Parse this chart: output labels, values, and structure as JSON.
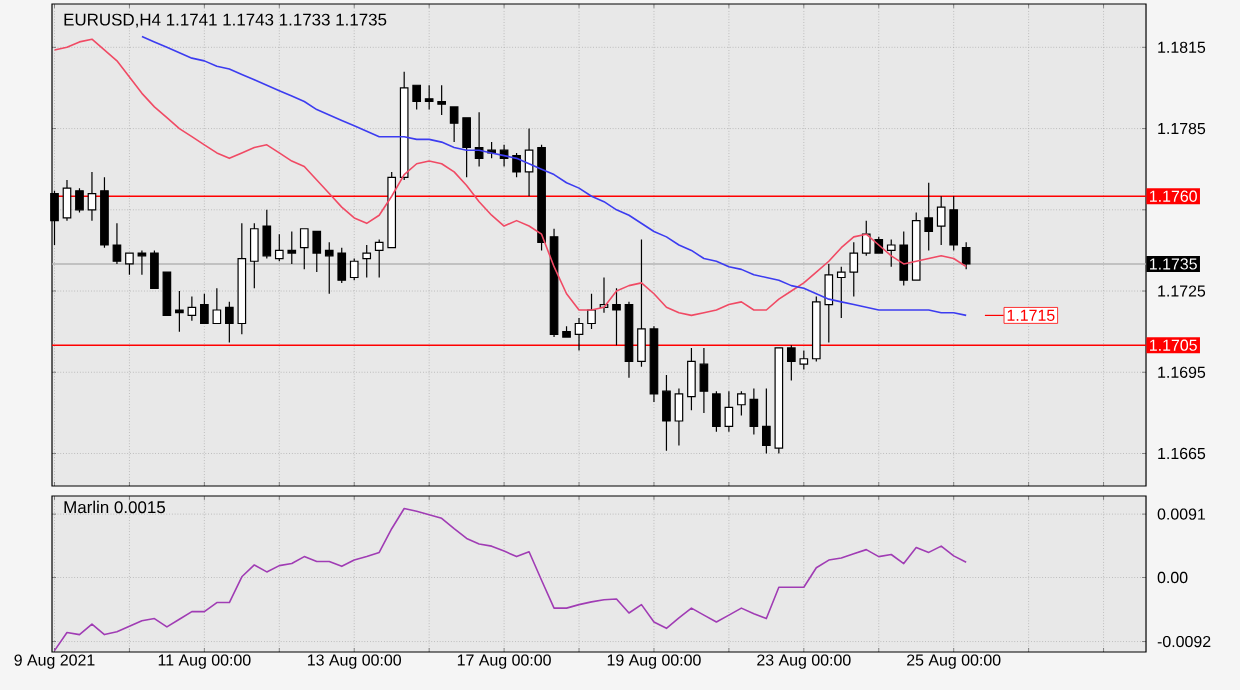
{
  "chart_data": [
    {
      "type": "candlestick",
      "title": "EURUSD,H4  1.1741 1.1743 1.1733 1.1735",
      "categories": [
        null,
        null,
        null,
        null,
        null,
        null,
        null,
        null,
        null,
        null,
        null,
        null,
        null,
        null,
        null,
        null,
        null,
        null,
        null,
        null,
        null,
        null,
        null,
        null,
        null,
        null,
        null,
        null,
        null,
        null,
        null,
        null,
        null,
        null,
        null,
        null,
        null,
        null,
        null,
        null,
        null,
        null,
        null,
        null,
        null,
        null,
        null,
        null,
        null,
        null,
        null,
        null,
        null,
        null,
        null,
        null,
        null,
        null,
        null,
        null,
        null,
        null,
        null,
        null,
        null,
        null,
        null,
        null,
        null,
        null,
        null,
        null,
        null,
        null
      ],
      "ohlc": [
        [
          1.1761,
          1.1762,
          1.1742,
          1.1751
        ],
        [
          1.1752,
          1.1766,
          1.1751,
          1.1763
        ],
        [
          1.1762,
          1.1763,
          1.1754,
          1.1755
        ],
        [
          1.1755,
          1.1769,
          1.1751,
          1.1761
        ],
        [
          1.1762,
          1.1767,
          1.1741,
          1.1742
        ],
        [
          1.1742,
          1.175,
          1.1735,
          1.1736
        ],
        [
          1.1735,
          1.1739,
          1.1731,
          1.1739
        ],
        [
          1.1739,
          1.174,
          1.1731,
          1.1738
        ],
        [
          1.1739,
          1.174,
          1.1726,
          1.1726
        ],
        [
          1.1732,
          1.1732,
          1.1716,
          1.1716
        ],
        [
          1.1718,
          1.1725,
          1.171,
          1.1717
        ],
        [
          1.1716,
          1.1723,
          1.1714,
          1.1719
        ],
        [
          1.172,
          1.1724,
          1.1713,
          1.1713
        ],
        [
          1.1713,
          1.1726,
          1.1713,
          1.1718
        ],
        [
          1.1719,
          1.1721,
          1.1706,
          1.1713
        ],
        [
          1.1713,
          1.175,
          1.1709,
          1.1737
        ],
        [
          1.1736,
          1.175,
          1.1726,
          1.1748
        ],
        [
          1.1749,
          1.1755,
          1.1737,
          1.1738
        ],
        [
          1.1737,
          1.1746,
          1.1736,
          1.174
        ],
        [
          1.174,
          1.1747,
          1.1735,
          1.1739
        ],
        [
          1.1741,
          1.1748,
          1.1733,
          1.1748
        ],
        [
          1.1747,
          1.1747,
          1.1732,
          1.1739
        ],
        [
          1.174,
          1.1743,
          1.1724,
          1.1738
        ],
        [
          1.1739,
          1.1741,
          1.1728,
          1.1729
        ],
        [
          1.173,
          1.1737,
          1.1729,
          1.1736
        ],
        [
          1.1737,
          1.1742,
          1.173,
          1.1739
        ],
        [
          1.174,
          1.1744,
          1.173,
          1.1743
        ],
        [
          1.1741,
          1.1769,
          1.1741,
          1.1767
        ],
        [
          1.1767,
          1.1806,
          1.1766,
          1.18
        ],
        [
          1.1801,
          1.1801,
          1.1792,
          1.1795
        ],
        [
          1.1796,
          1.1801,
          1.1792,
          1.1795
        ],
        [
          1.1795,
          1.1801,
          1.179,
          1.1794
        ],
        [
          1.1793,
          1.1793,
          1.178,
          1.1787
        ],
        [
          1.1789,
          1.1789,
          1.1767,
          1.1778
        ],
        [
          1.1778,
          1.1791,
          1.1771,
          1.1774
        ],
        [
          1.1777,
          1.178,
          1.1774,
          1.1776
        ],
        [
          1.1777,
          1.1779,
          1.1771,
          1.1774
        ],
        [
          1.1775,
          1.1776,
          1.1767,
          1.1769
        ],
        [
          1.1769,
          1.1785,
          1.176,
          1.1777
        ],
        [
          1.1778,
          1.1779,
          1.174,
          1.1743
        ],
        [
          1.1745,
          1.1748,
          1.1708,
          1.1709
        ],
        [
          1.171,
          1.1712,
          1.1708,
          1.1708
        ],
        [
          1.1709,
          1.1715,
          1.1703,
          1.1713
        ],
        [
          1.1713,
          1.1724,
          1.1711,
          1.1718
        ],
        [
          1.1719,
          1.173,
          1.1717,
          1.172
        ],
        [
          1.172,
          1.1726,
          1.1705,
          1.1718
        ],
        [
          1.172,
          1.1721,
          1.1693,
          1.1699
        ],
        [
          1.1699,
          1.1744,
          1.1697,
          1.1711
        ],
        [
          1.1711,
          1.1712,
          1.1684,
          1.1687
        ],
        [
          1.1688,
          1.1694,
          1.1666,
          1.1677
        ],
        [
          1.1677,
          1.1689,
          1.1668,
          1.1687
        ],
        [
          1.1686,
          1.1704,
          1.1681,
          1.1699
        ],
        [
          1.1698,
          1.1704,
          1.168,
          1.1688
        ],
        [
          1.1687,
          1.1688,
          1.1673,
          1.1675
        ],
        [
          1.1675,
          1.1688,
          1.1673,
          1.1682
        ],
        [
          1.1683,
          1.1688,
          1.1679,
          1.1687
        ],
        [
          1.1685,
          1.1689,
          1.1672,
          1.1675
        ],
        [
          1.1675,
          1.1689,
          1.1665,
          1.1668
        ],
        [
          1.1667,
          1.1704,
          1.1665,
          1.1704
        ],
        [
          1.1704,
          1.1705,
          1.1692,
          1.1699
        ],
        [
          1.1698,
          1.1703,
          1.1696,
          1.17
        ],
        [
          1.17,
          1.1723,
          1.1699,
          1.1721
        ],
        [
          1.172,
          1.1735,
          1.1706,
          1.1731
        ],
        [
          1.173,
          1.1734,
          1.1715,
          1.1732
        ],
        [
          1.1732,
          1.1743,
          1.1723,
          1.1739
        ],
        [
          1.1739,
          1.1751,
          1.1738,
          1.1746
        ],
        [
          1.1744,
          1.1745,
          1.1739,
          1.1739
        ],
        [
          1.174,
          1.1744,
          1.1734,
          1.1742
        ],
        [
          1.1742,
          1.1747,
          1.1727,
          1.1729
        ],
        [
          1.1729,
          1.1754,
          1.1729,
          1.1751
        ],
        [
          1.1752,
          1.1765,
          1.174,
          1.1747
        ],
        [
          1.1749,
          1.176,
          1.1742,
          1.1756
        ],
        [
          1.1755,
          1.176,
          1.174,
          1.1742
        ],
        [
          1.1741,
          1.1743,
          1.1733,
          1.1735
        ]
      ],
      "series": [
        {
          "type": "line",
          "color": "#f04a64",
          "values": [
            1.1814,
            1.1815,
            1.1817,
            1.1818,
            1.1814,
            1.181,
            1.1804,
            1.1798,
            1.1793,
            1.1789,
            1.1785,
            1.1782,
            1.1779,
            1.1776,
            1.1774,
            1.1776,
            1.1778,
            1.1779,
            1.1776,
            1.1773,
            1.1771,
            1.1766,
            1.1761,
            1.1756,
            1.1752,
            1.175,
            1.1753,
            1.176,
            1.1768,
            1.1772,
            1.1773,
            1.1772,
            1.1769,
            1.1764,
            1.1758,
            1.1753,
            1.1749,
            1.1751,
            1.1749,
            1.1746,
            1.1734,
            1.1724,
            1.1718,
            1.1718,
            1.1719,
            1.1725,
            1.1727,
            1.1728,
            1.1724,
            1.1719,
            1.1717,
            1.1716,
            1.1717,
            1.1718,
            1.172,
            1.1721,
            1.1718,
            1.1718,
            1.1722,
            1.1725,
            1.1728,
            1.1732,
            1.1736,
            1.1741,
            1.1745,
            1.1746,
            1.1742,
            1.1738,
            1.1735,
            1.1736,
            1.1737,
            1.1738,
            1.1737,
            1.1734
          ]
        },
        {
          "type": "line",
          "color": "#3c3cf0",
          "values": [
            null,
            null,
            null,
            null,
            null,
            null,
            null,
            1.1819,
            1.1817,
            1.1815,
            1.1813,
            1.1811,
            1.181,
            1.1808,
            1.1807,
            1.1805,
            1.1803,
            1.1801,
            1.1799,
            1.1797,
            1.1795,
            1.1792,
            1.179,
            1.1788,
            1.1786,
            1.1784,
            1.1782,
            1.1782,
            1.1782,
            1.1781,
            1.1781,
            1.178,
            1.1778,
            1.1777,
            1.1777,
            1.1776,
            1.1775,
            1.1774,
            1.1772,
            1.177,
            1.1768,
            1.1765,
            1.1763,
            1.176,
            1.1758,
            1.1755,
            1.1753,
            1.175,
            1.1747,
            1.1745,
            1.1742,
            1.174,
            1.1737,
            1.1736,
            1.1734,
            1.1733,
            1.1731,
            1.173,
            1.1729,
            1.1727,
            1.1726,
            1.1724,
            1.1722,
            1.1721,
            1.172,
            1.1719,
            1.1718,
            1.1718,
            1.1718,
            1.1718,
            1.1718,
            1.1717,
            1.1717,
            1.1716
          ]
        }
      ],
      "ylim": [
        1.1653,
        1.1831
      ],
      "yticks": [
        1.1665,
        1.1695,
        1.1725,
        {
          "value": 1.1755,
          "label": null
        },
        1.1785,
        1.1815
      ],
      "grid": true,
      "tick_labels": "y",
      "ref_lines": [
        {
          "axis": "y",
          "value": 1.176,
          "label": "1.1760",
          "color": "#ff0000"
        },
        {
          "axis": "y",
          "value": 1.1705,
          "label": "1.1705",
          "color": "#ff0000"
        },
        {
          "axis": "y",
          "value": 1.1735,
          "label": "1.1735",
          "color": "#b4b4b4"
        }
      ],
      "annotations": [
        "1.1715"
      ]
    },
    {
      "type": "line",
      "title": "Marlin 0.0015",
      "categories": [
        "9 Aug 2021",
        null,
        null,
        null,
        null,
        null,
        null,
        null,
        null,
        null,
        null,
        null,
        "11 Aug 00:00",
        null,
        null,
        null,
        null,
        null,
        null,
        null,
        null,
        null,
        null,
        null,
        "13 Aug 00:00",
        null,
        null,
        null,
        null,
        null,
        null,
        null,
        null,
        null,
        null,
        null,
        "17 Aug 00:00",
        null,
        null,
        null,
        null,
        null,
        null,
        null,
        null,
        null,
        null,
        null,
        "19 Aug 00:00",
        null,
        null,
        null,
        null,
        null,
        null,
        null,
        null,
        null,
        null,
        null,
        "23 Aug 00:00",
        null,
        null,
        null,
        null,
        null,
        null,
        null,
        null,
        null,
        null,
        null,
        "25 Aug 00:00",
        null
      ],
      "series": [
        {
          "color": "#a03cb4",
          "values": [
            -0.0105,
            -0.0079,
            -0.0082,
            -0.0067,
            -0.0082,
            -0.0078,
            -0.007,
            -0.0062,
            -0.0059,
            -0.0071,
            -0.006,
            -0.0049,
            -0.0049,
            -0.0036,
            -0.0036,
            0.0001,
            0.0018,
            0.0008,
            0.0017,
            0.002,
            0.003,
            0.0023,
            0.0023,
            0.0016,
            0.0025,
            0.003,
            0.0036,
            0.007,
            0.0099,
            0.0095,
            0.009,
            0.0085,
            0.007,
            0.0056,
            0.0048,
            0.0045,
            0.0038,
            0.003,
            0.0037,
            -0.0004,
            -0.0044,
            -0.0044,
            -0.0039,
            -0.0035,
            -0.0032,
            -0.0031,
            -0.0051,
            -0.0039,
            -0.0064,
            -0.0073,
            -0.0058,
            -0.0044,
            -0.0054,
            -0.0064,
            -0.0054,
            -0.0044,
            -0.0052,
            -0.0059,
            -0.0014,
            -0.0014,
            -0.0014,
            0.0014,
            0.0025,
            0.0028,
            0.0034,
            0.004,
            0.003,
            0.0033,
            0.002,
            0.0043,
            0.0036,
            0.0045,
            0.0031,
            0.0022
          ]
        }
      ],
      "ylim": [
        -0.0107,
        0.0117
      ],
      "yticks": [
        -0.0092,
        {
          "value": 0,
          "label": "0.00"
        },
        0.0091
      ],
      "grid": true
    }
  ]
}
